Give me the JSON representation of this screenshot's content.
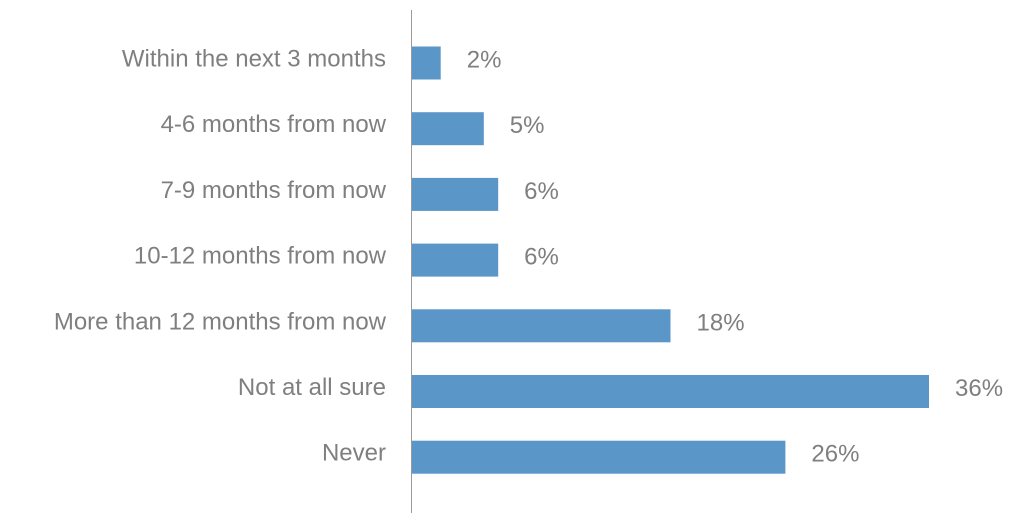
{
  "chart_data": {
    "type": "bar",
    "orientation": "horizontal",
    "categories": [
      "Within the next 3 months",
      "4-6 months from now",
      "7-9 months from now",
      "10-12 months from now",
      "More than 12 months from now",
      "Not at all sure",
      "Never"
    ],
    "values": [
      2,
      5,
      6,
      6,
      18,
      36,
      26
    ],
    "value_labels": [
      "2%",
      "5%",
      "6%",
      "6%",
      "18%",
      "36%",
      "26%"
    ],
    "title": "",
    "xlabel": "",
    "ylabel": "",
    "xlim": [
      0,
      36
    ],
    "grid": false,
    "legend": "none"
  },
  "colors": {
    "bar": "#5b96c9",
    "text": "#7f7f7f",
    "axis": "#9a9a9a"
  }
}
